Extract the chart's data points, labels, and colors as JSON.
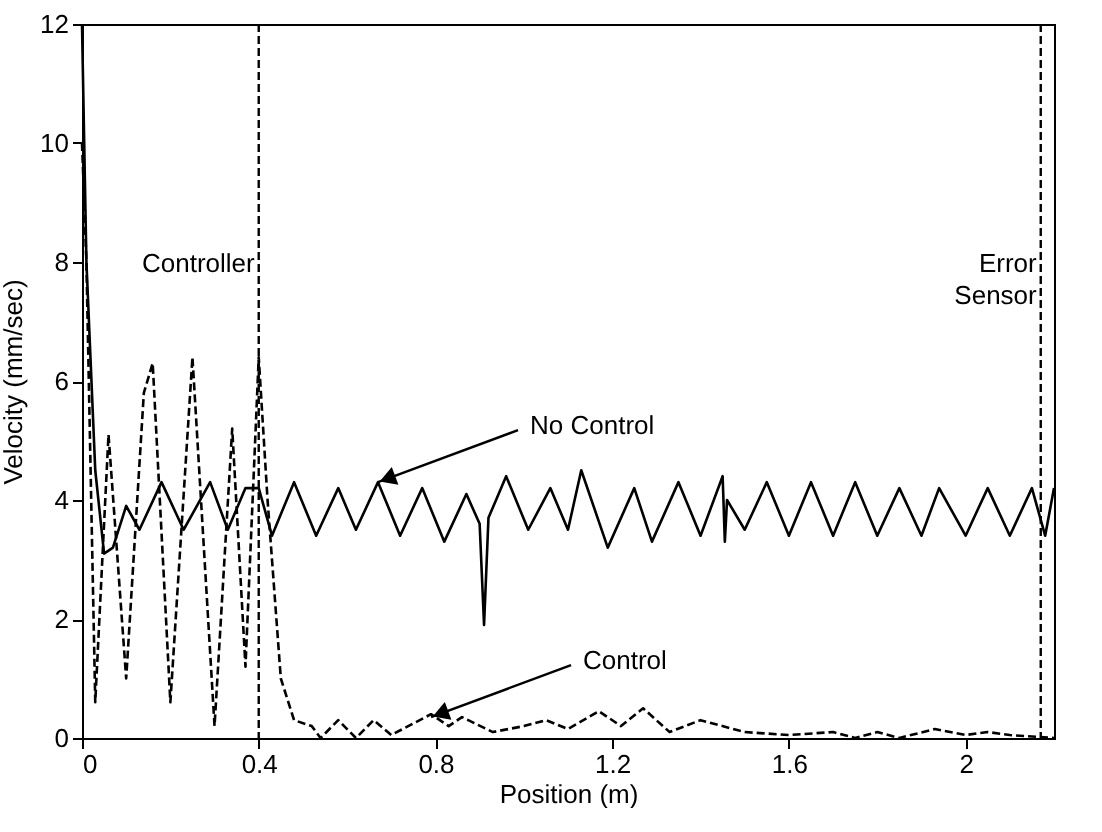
{
  "chart_data": {
    "type": "line",
    "xlabel": "Position (m)",
    "ylabel": "Velocity (mm/sec)",
    "xlim": [
      0,
      2.2
    ],
    "xticks": [
      0,
      0.4,
      0.8,
      1.2,
      1.6,
      2
    ],
    "ylim": [
      0,
      12
    ],
    "yticks": [
      0,
      2,
      4,
      6,
      8,
      10,
      12
    ],
    "grid": false,
    "series": [
      {
        "color": "#000000",
        "line_style": "solid",
        "x": [
          0,
          0.01,
          0.03,
          0.05,
          0.07,
          0.1,
          0.13,
          0.18,
          0.23,
          0.29,
          0.33,
          0.37,
          0.4,
          0.43,
          0.48,
          0.53,
          0.58,
          0.62,
          0.67,
          0.72,
          0.77,
          0.82,
          0.87,
          0.9,
          0.91,
          0.92,
          0.96,
          1.01,
          1.06,
          1.1,
          1.13,
          1.19,
          1.25,
          1.29,
          1.35,
          1.4,
          1.45,
          1.455,
          1.46,
          1.5,
          1.55,
          1.6,
          1.65,
          1.7,
          1.75,
          1.8,
          1.85,
          1.9,
          1.94,
          2.0,
          2.05,
          2.1,
          2.15,
          2.18,
          2.2
        ],
        "values": [
          12,
          8,
          4.5,
          3.1,
          3.2,
          3.9,
          3.5,
          4.3,
          3.5,
          4.3,
          3.5,
          4.2,
          4.2,
          3.4,
          4.3,
          3.4,
          4.2,
          3.5,
          4.3,
          3.4,
          4.2,
          3.3,
          4.1,
          3.6,
          1.9,
          3.7,
          4.4,
          3.5,
          4.2,
          3.5,
          4.5,
          3.2,
          4.2,
          3.3,
          4.3,
          3.4,
          4.4,
          3.3,
          4,
          3.5,
          4.3,
          3.4,
          4.3,
          3.4,
          4.3,
          3.4,
          4.2,
          3.4,
          4.2,
          3.4,
          4.2,
          3.4,
          4.2,
          3.4,
          4.2
        ]
      },
      {
        "color": "#000000",
        "line_style": "dashed",
        "x": [
          0,
          0.01,
          0.03,
          0.06,
          0.1,
          0.14,
          0.16,
          0.2,
          0.25,
          0.3,
          0.34,
          0.37,
          0.4,
          0.42,
          0.45,
          0.48,
          0.52,
          0.54,
          0.58,
          0.62,
          0.66,
          0.7,
          0.79,
          0.83,
          0.86,
          0.93,
          1.0,
          1.05,
          1.1,
          1.17,
          1.22,
          1.27,
          1.33,
          1.4,
          1.5,
          1.6,
          1.7,
          1.75,
          1.8,
          1.85,
          1.93,
          2.0,
          2.05,
          2.1,
          2.2
        ],
        "values": [
          10,
          8,
          0.6,
          5.1,
          1,
          5.8,
          6.3,
          0.6,
          6.4,
          0.2,
          5.2,
          1.2,
          6.4,
          4,
          1,
          0.3,
          0.2,
          0,
          0.3,
          0,
          0.3,
          0.05,
          0.4,
          0.2,
          0.35,
          0.1,
          0.2,
          0.3,
          0.15,
          0.45,
          0.2,
          0.5,
          0.1,
          0.3,
          0.1,
          0.05,
          0.1,
          0,
          0.1,
          0,
          0.15,
          0.05,
          0.1,
          0.05,
          0
        ]
      }
    ],
    "ref_lines": [
      {
        "axis": "x",
        "value": 0.4,
        "label": "Controller",
        "line_style": "dashed"
      },
      {
        "axis": "x",
        "value": 2.17,
        "label": "Error\nSensor",
        "line_style": "dashed"
      }
    ],
    "annotations": [
      {
        "text": "No Control",
        "x": 0.67,
        "y": 4.3
      },
      {
        "text": "Control",
        "x": 0.79,
        "y": 0.35
      }
    ]
  }
}
